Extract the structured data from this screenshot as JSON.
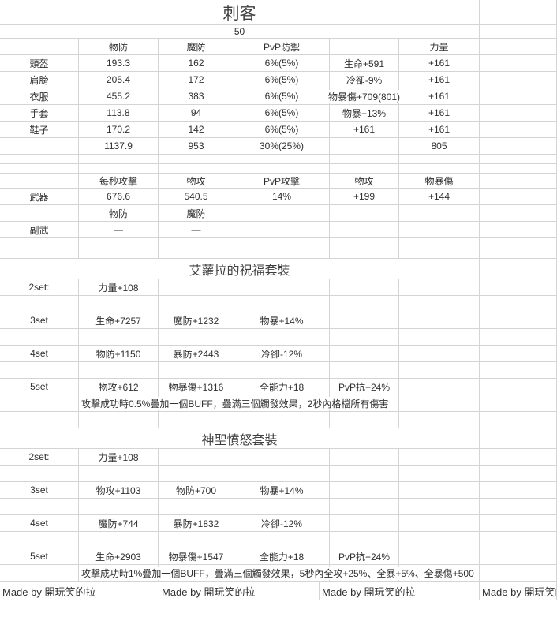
{
  "colors": {
    "grid_line": "#d4d4d4",
    "text": "#303030",
    "title_text": "#3f3f3f",
    "background": "#ffffff"
  },
  "title": "刺客",
  "level": "50",
  "equipment": {
    "headers": {
      "physdef": "物防",
      "magdef": "魔防",
      "pvpdef": "PvP防禦",
      "strength": "力量"
    },
    "rows": [
      {
        "label": "頭盔",
        "cells": [
          "193.3",
          "162",
          "6%(5%)",
          "生命+591",
          "+161"
        ]
      },
      {
        "label": "肩膀",
        "cells": [
          "205.4",
          "172",
          "6%(5%)",
          "冷卻-9%",
          "+161"
        ]
      },
      {
        "label": "衣服",
        "cells": [
          "455.2",
          "383",
          "6%(5%)",
          "物暴傷+709(801)",
          "+161"
        ]
      },
      {
        "label": "手套",
        "cells": [
          "113.8",
          "94",
          "6%(5%)",
          "物暴+13%",
          "+161"
        ]
      },
      {
        "label": "鞋子",
        "cells": [
          "170.2",
          "142",
          "6%(5%)",
          "+161",
          "+161"
        ]
      }
    ],
    "totals": {
      "physdef": "1137.9",
      "magdef": "953",
      "pvpdef": "30%(25%)",
      "strength": "805"
    }
  },
  "weapon": {
    "headers": {
      "aps": "每秒攻擊",
      "patk": "物攻",
      "pvpatk": "PvP攻擊",
      "patk_bonus": "物攻",
      "pcritdmg": "物暴傷"
    },
    "row": {
      "label": "武器",
      "cells": [
        "676.6",
        "540.5",
        "14%",
        "+199",
        "+144"
      ]
    },
    "sub_headers": {
      "physdef": "物防",
      "magdef": "魔防"
    },
    "offhand": {
      "label": "副武",
      "cells": [
        "—",
        "—"
      ]
    }
  },
  "sets": [
    {
      "title": "艾蘿拉的祝福套裝",
      "bonuses": [
        {
          "label": "2set:",
          "cells": [
            "力量+108",
            "",
            "",
            ""
          ]
        },
        {
          "label": "3set",
          "cells": [
            "生命+7257",
            "魔防+1232",
            "物暴+14%",
            ""
          ]
        },
        {
          "label": "4set",
          "cells": [
            "物防+1150",
            "暴防+2443",
            "冷卻-12%",
            ""
          ]
        },
        {
          "label": "5set",
          "cells": [
            "物攻+612",
            "物暴傷+1316",
            "全能力+18",
            "PvP抗+24%"
          ]
        }
      ],
      "note": "攻擊成功時0.5%疊加一個BUFF，疊滿三個觸發效果，2秒內格檔所有傷害"
    },
    {
      "title": "神聖憤怒套裝",
      "bonuses": [
        {
          "label": "2set:",
          "cells": [
            "力量+108",
            "",
            "",
            ""
          ]
        },
        {
          "label": "3set",
          "cells": [
            "物攻+1103",
            "物防+700",
            "物暴+14%",
            ""
          ]
        },
        {
          "label": "4set",
          "cells": [
            "魔防+744",
            "暴防+1832",
            "冷卻-12%",
            ""
          ]
        },
        {
          "label": "5set",
          "cells": [
            "生命+2903",
            "物暴傷+1547",
            "全能力+18",
            "PvP抗+24%"
          ]
        }
      ],
      "note": "攻擊成功時1%疊加一個BUFF，疊滿三個觸發效果，5秒內全攻+25%、全暴+5%、全暴傷+500"
    }
  ],
  "footer": {
    "credits": [
      "Made by 開玩笑的拉",
      "Made by 開玩笑的拉",
      "Made by 開玩笑的拉",
      "Made by 開玩笑的拉"
    ]
  }
}
